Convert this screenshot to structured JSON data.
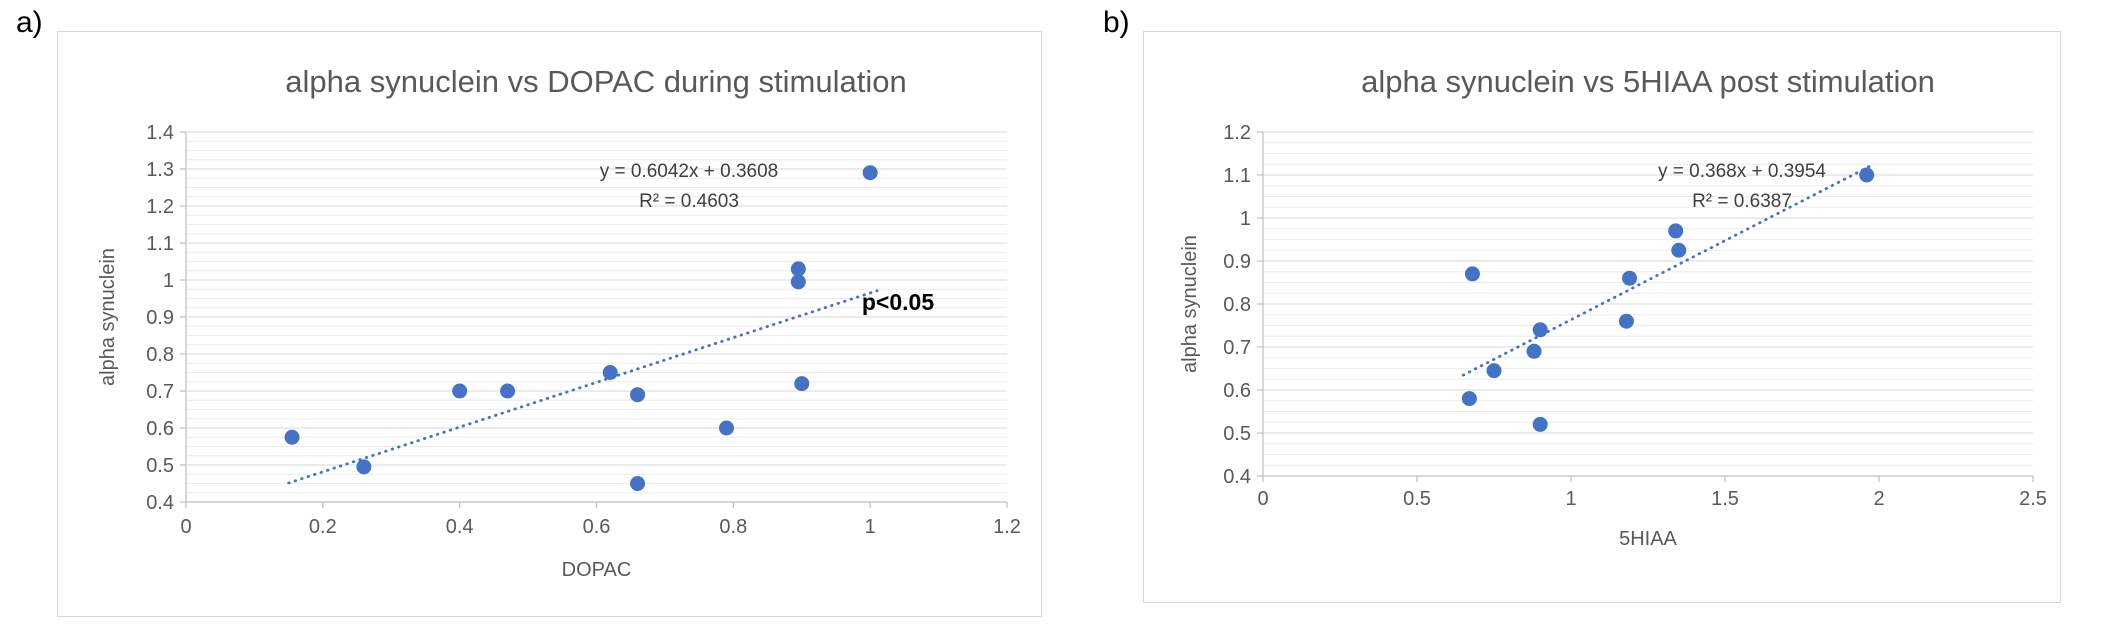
{
  "figure_labels": {
    "a": "a)",
    "b": "b)"
  },
  "colors": {
    "point": "#4472C4",
    "trendline": "#4472C4",
    "text": "#595959",
    "grid_major": "#D9D9D9",
    "grid_minor": "#ECECEC",
    "axis": "#BFBFBF",
    "equation_text": "#3F3F3F",
    "annotation_text": "#000000"
  },
  "chart_data": [
    {
      "id": "a",
      "type": "scatter",
      "title": "alpha synuclein vs DOPAC during stimulation",
      "xlabel": "DOPAC",
      "ylabel": "alpha synuclein",
      "xlim": [
        0,
        1.2
      ],
      "ylim": [
        0.4,
        1.4
      ],
      "xticks": [
        0,
        0.2,
        0.4,
        0.6,
        0.8,
        1,
        1.2
      ],
      "yticks": [
        0.4,
        0.5,
        0.6,
        0.7,
        0.8,
        0.9,
        1,
        1.1,
        1.2,
        1.3,
        1.4
      ],
      "y_minor_step": 0.025,
      "grid": true,
      "points": [
        [
          0.155,
          0.575
        ],
        [
          0.26,
          0.495
        ],
        [
          0.4,
          0.7
        ],
        [
          0.47,
          0.7
        ],
        [
          0.62,
          0.75
        ],
        [
          0.66,
          0.69
        ],
        [
          0.66,
          0.45
        ],
        [
          0.79,
          0.6
        ],
        [
          0.895,
          1.03
        ],
        [
          0.895,
          0.995
        ],
        [
          0.9,
          0.72
        ],
        [
          1.0,
          1.29
        ]
      ],
      "trendline": {
        "slope": 0.6042,
        "intercept": 0.3608,
        "x_start": 0.15,
        "x_end": 1.01,
        "label_equation": "y = 0.6042x + 0.3608",
        "label_r2": "R² = 0.4603"
      },
      "annotation": {
        "text": "p<0.05"
      }
    },
    {
      "id": "b",
      "type": "scatter",
      "title": "alpha synuclein vs 5HIAA post stimulation",
      "xlabel": "5HIAA",
      "ylabel": "alpha synuclein",
      "xlim": [
        0,
        2.5
      ],
      "ylim": [
        0.4,
        1.2
      ],
      "xticks": [
        0,
        0.5,
        1,
        1.5,
        2,
        2.5
      ],
      "yticks": [
        0.4,
        0.5,
        0.6,
        0.7,
        0.8,
        0.9,
        1,
        1.1,
        1.2
      ],
      "y_minor_step": 0.025,
      "grid": true,
      "points": [
        [
          0.68,
          0.87
        ],
        [
          0.67,
          0.58
        ],
        [
          0.75,
          0.645
        ],
        [
          0.88,
          0.69
        ],
        [
          0.9,
          0.74
        ],
        [
          0.9,
          0.52
        ],
        [
          1.18,
          0.76
        ],
        [
          1.19,
          0.86
        ],
        [
          1.34,
          0.97
        ],
        [
          1.35,
          0.925
        ],
        [
          1.96,
          1.1
        ]
      ],
      "trendline": {
        "slope": 0.368,
        "intercept": 0.3954,
        "x_start": 0.65,
        "x_end": 1.97,
        "label_equation": "y = 0.368x + 0.3954",
        "label_r2": "R² = 0.6387"
      },
      "annotation": null
    }
  ]
}
